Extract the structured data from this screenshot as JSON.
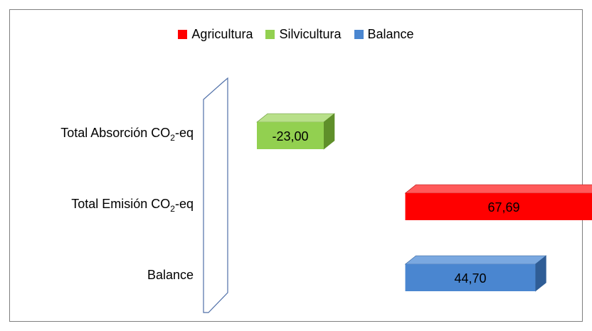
{
  "chart_data": {
    "type": "bar",
    "orientation": "horizontal",
    "style": "3d",
    "categories": [
      "Total Absorción  CO₂-eq",
      "Total Emisión   CO₂-eq",
      "Balance"
    ],
    "series": [
      {
        "name": "Agricultura",
        "color": "#ff0000",
        "dark": "#b30000",
        "light": "#ff5a5a"
      },
      {
        "name": "Silvicultura",
        "color": "#92d050",
        "dark": "#5f8f2a",
        "light": "#b8e08a"
      },
      {
        "name": "Balance",
        "color": "#4a86d0",
        "dark": "#2f5d96",
        "light": "#7aa8e0"
      }
    ],
    "bars": [
      {
        "category": "Total Absorción  CO₂-eq",
        "series": "Silvicultura",
        "value": -23.0,
        "label": "-23,00"
      },
      {
        "category": "Total Emisión   CO₂-eq",
        "series": "Agricultura",
        "value": 67.69,
        "label": "67,69"
      },
      {
        "category": "Balance",
        "series": "Balance",
        "value": 44.7,
        "label": "44,70"
      }
    ],
    "xlim": [
      -28,
      82
    ],
    "legend_position": "top",
    "grid": false
  }
}
